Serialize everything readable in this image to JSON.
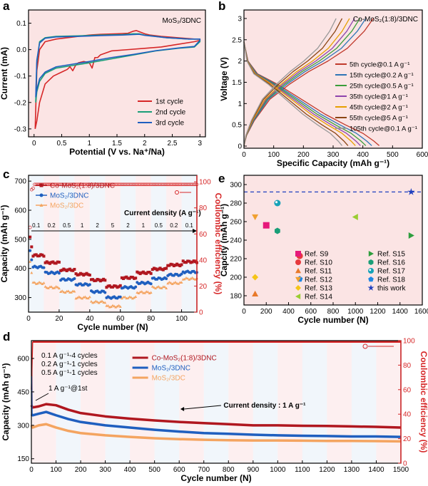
{
  "figure": {
    "panel_letters": [
      "a",
      "b",
      "c",
      "d",
      "e"
    ]
  },
  "chart_data": [
    {
      "panel": "a",
      "type": "line",
      "title": "MoS₂/3DNC",
      "xlabel": "Potential (V vs. Na⁺/Na)",
      "ylabel": "Current (mA)",
      "xlim": [
        -0.1,
        3.1
      ],
      "ylim": [
        -0.33,
        0.15
      ],
      "xticks": [
        0.0,
        0.5,
        1.0,
        1.5,
        2.0,
        2.5,
        3.0
      ],
      "yticks": [
        -0.3,
        -0.2,
        -0.1,
        0.0,
        0.1
      ],
      "ytick_labels": [
        "-0.3",
        "-0.2",
        "-0.1",
        "0.0",
        "0.1"
      ],
      "legend_position": "bottom-right",
      "series": [
        {
          "name": "1st cycle",
          "color": "#d62728",
          "x": [
            0.02,
            0.05,
            0.1,
            0.2,
            0.35,
            0.5,
            0.6,
            0.65,
            0.7,
            0.75,
            0.8,
            0.9,
            1.0,
            1.05,
            1.1,
            1.15,
            1.2,
            1.4,
            1.7,
            2.0,
            2.3,
            2.6,
            2.9,
            3.0,
            3.0,
            2.9,
            2.6,
            2.3,
            2.1,
            2.0,
            1.9,
            1.85,
            1.8,
            1.7,
            1.5,
            1.2,
            1.0,
            0.8,
            0.6,
            0.4,
            0.2,
            0.1,
            0.05,
            0.02
          ],
          "y": [
            -0.3,
            -0.27,
            -0.2,
            -0.13,
            -0.1,
            -0.085,
            -0.075,
            -0.065,
            -0.08,
            -0.06,
            -0.05,
            -0.045,
            -0.05,
            -0.07,
            -0.03,
            -0.03,
            -0.02,
            -0.005,
            0.0,
            0.005,
            0.01,
            0.02,
            0.03,
            0.035,
            0.04,
            0.04,
            0.045,
            0.05,
            0.055,
            0.06,
            0.068,
            0.072,
            0.07,
            0.062,
            0.06,
            0.058,
            0.055,
            0.05,
            0.045,
            0.04,
            0.03,
            0.0,
            -0.08,
            -0.3
          ]
        },
        {
          "name": "2nd cycle",
          "color": "#1a9e77",
          "x": [
            0.03,
            0.05,
            0.1,
            0.2,
            0.4,
            0.7,
            1.0,
            1.4,
            1.8,
            2.2,
            2.6,
            2.9,
            3.0,
            3.0,
            2.8,
            2.4,
            2.0,
            1.9,
            1.8,
            1.6,
            1.2,
            0.8,
            0.4,
            0.2,
            0.1,
            0.05,
            0.03
          ],
          "y": [
            -0.2,
            -0.16,
            -0.12,
            -0.09,
            -0.07,
            -0.06,
            -0.05,
            -0.035,
            -0.02,
            -0.005,
            0.005,
            0.01,
            0.03,
            0.04,
            0.04,
            0.045,
            0.055,
            0.06,
            0.06,
            0.057,
            0.055,
            0.052,
            0.05,
            0.045,
            0.03,
            -0.05,
            -0.2
          ]
        },
        {
          "name": "3rd cycle",
          "color": "#1f5fbf",
          "x": [
            0.03,
            0.05,
            0.1,
            0.2,
            0.4,
            0.7,
            1.0,
            1.4,
            1.8,
            2.2,
            2.6,
            2.9,
            3.0,
            3.0,
            2.8,
            2.4,
            2.0,
            1.9,
            1.8,
            1.6,
            1.2,
            0.8,
            0.4,
            0.2,
            0.1,
            0.05,
            0.03
          ],
          "y": [
            -0.18,
            -0.15,
            -0.11,
            -0.085,
            -0.065,
            -0.055,
            -0.045,
            -0.03,
            -0.018,
            -0.004,
            0.006,
            0.012,
            0.035,
            0.04,
            0.04,
            0.045,
            0.054,
            0.058,
            0.057,
            0.055,
            0.053,
            0.05,
            0.048,
            0.043,
            0.025,
            -0.04,
            -0.18
          ]
        }
      ]
    },
    {
      "panel": "b",
      "type": "line",
      "title": "Co-MoS₂(1:8)/3DNC",
      "xlabel": "Specific Capacity (mAh g⁻¹)",
      "ylabel": "Voltage (V)",
      "xlim": [
        0,
        600
      ],
      "ylim": [
        -0.05,
        3.2
      ],
      "xticks": [
        0,
        100,
        200,
        300,
        400,
        500,
        600
      ],
      "yticks": [
        0.0,
        0.5,
        1.0,
        1.5,
        2.0,
        2.5,
        3.0
      ],
      "legend_position": "right",
      "series": [
        {
          "name": "5th cycle@0.1 A g⁻¹",
          "color": "#c0392b",
          "capacity": 455
        },
        {
          "name": "15th cycle@0.2 A g⁻¹",
          "color": "#2e75b6",
          "capacity": 430
        },
        {
          "name": "25th cycle@0.5 A g⁻¹",
          "color": "#3a9d3a",
          "capacity": 410
        },
        {
          "name": "35th cycle@1 A g⁻¹",
          "color": "#8e44ad",
          "capacity": 392
        },
        {
          "name": "45th cycle@2 A g⁻¹",
          "color": "#e69f00",
          "capacity": 375
        },
        {
          "name": "55th cycle@5 A g⁻¹",
          "color": "#8b4513",
          "capacity": 350
        },
        {
          "name": "105th cycle@0.1 A g⁻¹",
          "color": "#999999",
          "capacity": 330
        }
      ]
    },
    {
      "panel": "c",
      "type": "scatter",
      "xlabel": "Cycle number (N)",
      "ylabel": "Capacity (mAh g⁻¹)",
      "y2label": "Coulombic efficiency (%)",
      "xlim": [
        0,
        110
      ],
      "ylim": [
        250,
        720
      ],
      "y2lim": [
        0,
        105
      ],
      "xticks": [
        0,
        20,
        40,
        60,
        80,
        100
      ],
      "yticks": [
        300,
        400,
        500,
        600,
        700
      ],
      "y2ticks": [
        0,
        20,
        40,
        60,
        80,
        100
      ],
      "current_density_title": "Current density (A g⁻¹)",
      "rate_labels": [
        "0.1",
        "0.2",
        "0.5",
        "1",
        "2",
        "5",
        "2",
        "1",
        "0.5",
        "0.2",
        "0.1"
      ],
      "legend_position": "top-left",
      "series": [
        {
          "name": "Co-MoS₂(1:8)/3DNC",
          "color": "#b0171f",
          "marker": "square",
          "segment_values": [
            445,
            420,
            395,
            380,
            360,
            338,
            368,
            385,
            398,
            412,
            423
          ],
          "first_value": 505
        },
        {
          "name": "MoS₂/3DNC",
          "color": "#1f5fbf",
          "marker": "circle",
          "segment_values": [
            405,
            385,
            362,
            345,
            320,
            300,
            335,
            350,
            365,
            378,
            388
          ],
          "first_value": 460
        },
        {
          "name": "MoS₂/3DC",
          "color": "#f4a460",
          "marker": "triangle",
          "segment_values": [
            350,
            335,
            320,
            300,
            285,
            270,
            300,
            318,
            335,
            350,
            365
          ],
          "first_value": 425
        }
      ],
      "coulombic_efficiency": {
        "color": "#d62728",
        "first_value": 65,
        "plateau": 98
      }
    },
    {
      "panel": "d",
      "type": "line",
      "xlabel": "Cycle number (N)",
      "ylabel": "Capacity (mAh g⁻¹)",
      "y2label": "Coulombic efficiency (%)",
      "xlim": [
        0,
        1500
      ],
      "ylim": [
        130,
        680
      ],
      "y2lim": [
        0,
        100
      ],
      "xticks": [
        0,
        100,
        200,
        300,
        400,
        500,
        600,
        700,
        800,
        900,
        1000,
        1100,
        1200,
        1300,
        1400,
        1500
      ],
      "yticks": [
        150,
        300,
        450,
        600
      ],
      "y2ticks": [
        0,
        20,
        40,
        60,
        80,
        100
      ],
      "activation_notes": [
        "0.1 A g⁻¹-4 cycles",
        "0.2 A g⁻¹-1 cycles",
        "0.5 A g⁻¹-1 cycles"
      ],
      "first_cycle_note": "1 A g⁻¹@1st",
      "current_note": "Current density : 1 A g⁻¹",
      "legend_position": "top-center",
      "series": [
        {
          "name": "Co-MoS₂(1:8)/3DNC",
          "color": "#b0171f",
          "x": [
            0,
            5,
            30,
            60,
            100,
            150,
            200,
            300,
            400,
            500,
            600,
            700,
            800,
            900,
            1000,
            1100,
            1200,
            1300,
            1400,
            1500
          ],
          "y": [
            390,
            380,
            385,
            395,
            390,
            370,
            355,
            340,
            330,
            322,
            315,
            310,
            305,
            300,
            300,
            298,
            297,
            295,
            293,
            290
          ]
        },
        {
          "name": "MoS₂/3DNC",
          "color": "#1f5fbf",
          "x": [
            0,
            5,
            30,
            60,
            100,
            150,
            200,
            300,
            400,
            500,
            600,
            700,
            800,
            900,
            1000,
            1100,
            1200,
            1300,
            1400,
            1500
          ],
          "y": [
            350,
            345,
            352,
            360,
            345,
            328,
            315,
            300,
            290,
            280,
            272,
            265,
            262,
            258,
            255,
            253,
            252,
            250,
            250,
            248
          ]
        },
        {
          "name": "MoS₂/3DC",
          "color": "#f4a460",
          "x": [
            0,
            5,
            30,
            60,
            100,
            150,
            200,
            300,
            400,
            500,
            600,
            700,
            800,
            900,
            1000,
            1100,
            1200,
            1300,
            1400,
            1500
          ],
          "y": [
            300,
            290,
            300,
            305,
            290,
            275,
            265,
            255,
            248,
            242,
            238,
            235,
            233,
            232,
            232,
            231,
            230,
            230,
            229,
            228
          ]
        }
      ],
      "coulombic_efficiency": {
        "color": "#d62728",
        "plateau": 99
      }
    },
    {
      "panel": "e",
      "type": "scatter",
      "xlabel": "Cycle number (N)",
      "ylabel": "Capcity (mAh g⁻¹)",
      "xlim": [
        0,
        1600
      ],
      "ylim": [
        170,
        310
      ],
      "xticks": [
        0,
        200,
        400,
        600,
        800,
        1000,
        1200,
        1400,
        1600
      ],
      "yticks": [
        180,
        200,
        220,
        240,
        260,
        280,
        300
      ],
      "reference_line": 292,
      "legend_position": "bottom-right",
      "points": [
        {
          "name": "Ref. S9",
          "x": 200,
          "y": 256,
          "color": "#e6197a",
          "marker": "square"
        },
        {
          "name": "Ref. S10",
          "x": 500,
          "y": 223,
          "color": "#e6393d",
          "marker": "circle"
        },
        {
          "name": "Ref. S11",
          "x": 100,
          "y": 182,
          "color": "#e8792a",
          "marker": "triangle-up"
        },
        {
          "name": "Ref. S12",
          "x": 100,
          "y": 265,
          "color": "#f0a030",
          "marker": "triangle-down"
        },
        {
          "name": "Ref. S13",
          "x": 100,
          "y": 200,
          "color": "#f5c518",
          "marker": "diamond"
        },
        {
          "name": "Ref. S14",
          "x": 1000,
          "y": 265,
          "color": "#9acd32",
          "marker": "triangle-left"
        },
        {
          "name": "Ref. S15",
          "x": 1500,
          "y": 245,
          "color": "#2e9e3e",
          "marker": "triangle-right"
        },
        {
          "name": "Ref. S16",
          "x": 300,
          "y": 250,
          "color": "#1a9e77",
          "marker": "hexagon"
        },
        {
          "name": "Ref. S17",
          "x": 300,
          "y": 280,
          "color": "#17a2b8",
          "marker": "circle-dot"
        },
        {
          "name": "Ref. S18",
          "x": 500,
          "y": 198,
          "color": "#1e88e5",
          "marker": "pentagon"
        },
        {
          "name": "this work",
          "x": 1500,
          "y": 292,
          "color": "#1f3fbf",
          "marker": "star"
        }
      ]
    }
  ]
}
